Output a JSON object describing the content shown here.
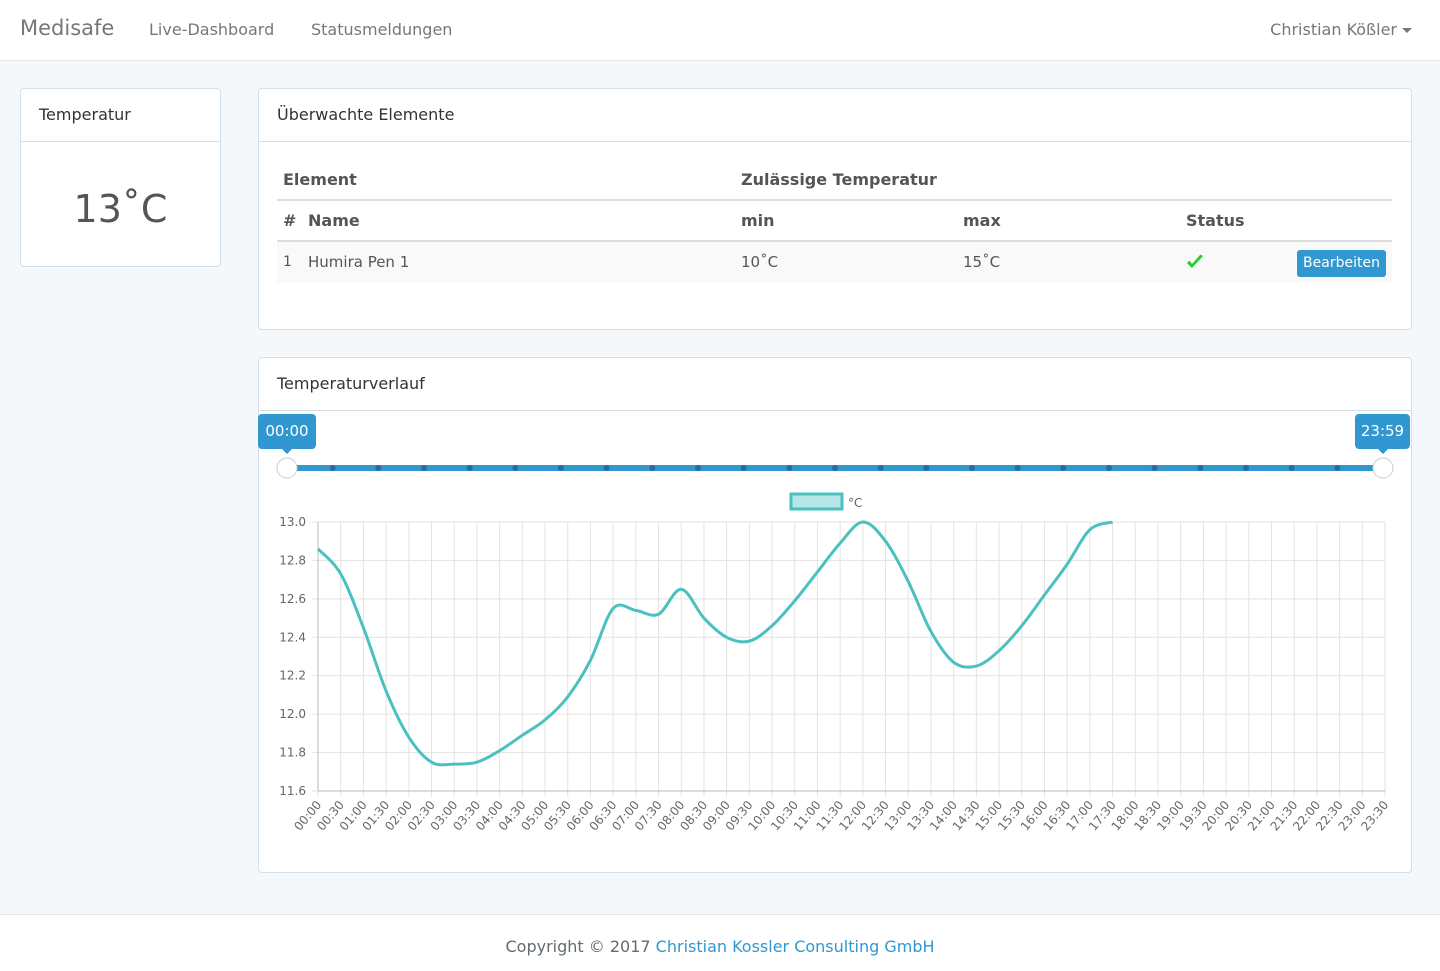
{
  "navbar": {
    "brand": "Medisafe",
    "links": [
      "Live-Dashboard",
      "Statusmeldungen"
    ],
    "user": "Christian Kößler"
  },
  "temperature_panel": {
    "title": "Temperatur",
    "value": "13˚C"
  },
  "elements_panel": {
    "title": "Überwachte Elemente",
    "table": {
      "group_headers": [
        "Element",
        "Zulässige Temperatur"
      ],
      "headers": [
        "#",
        "Name",
        "min",
        "max",
        "Status"
      ],
      "rows": [
        [
          "1",
          "Humira Pen 1",
          "10˚C",
          "15˚C"
        ]
      ],
      "button": "Bearbeiten"
    }
  },
  "history_panel": {
    "title": "Temperaturverlauf",
    "range_start": "00:00",
    "range_end": "23:59"
  },
  "chart_data": {
    "type": "line",
    "categories": [
      "00:00",
      "00:30",
      "01:00",
      "01:30",
      "02:00",
      "02:30",
      "03:00",
      "03:30",
      "04:00",
      "04:30",
      "05:00",
      "05:30",
      "06:00",
      "06:30",
      "07:00",
      "07:30",
      "08:00",
      "08:30",
      "09:00",
      "09:30",
      "10:00",
      "10:30",
      "11:00",
      "11:30",
      "12:00",
      "12:30",
      "13:00",
      "13:30",
      "14:00",
      "14:30",
      "15:00",
      "15:30",
      "16:00",
      "16:30",
      "17:00",
      "17:30",
      "18:00",
      "18:30",
      "19:00",
      "19:30",
      "20:00",
      "20:30",
      "21:00",
      "21:30",
      "22:00",
      "22:30",
      "23:00",
      "23:30"
    ],
    "series": [
      {
        "name": "°C",
        "color": "#4bc0c0",
        "values": [
          12.86,
          12.73,
          12.45,
          12.12,
          11.88,
          11.75,
          11.74,
          11.75,
          11.81,
          11.89,
          11.97,
          12.09,
          12.28,
          12.55,
          12.54,
          12.52,
          12.65,
          12.5,
          12.4,
          12.38,
          12.46,
          12.59,
          12.74,
          12.89,
          13.0,
          12.9,
          12.69,
          12.43,
          12.27,
          12.25,
          12.33,
          12.46,
          12.62,
          12.78,
          12.96,
          13.0,
          null,
          null,
          null,
          null,
          null,
          null,
          null,
          null,
          null,
          null,
          null,
          null
        ]
      }
    ],
    "ylim": [
      11.6,
      13.0
    ],
    "yticks": [
      11.6,
      11.8,
      {
        "value": 12,
        "label": "12.0"
      },
      12.2,
      12.4,
      12.6,
      12.8,
      {
        "value": 13,
        "label": "13.0"
      }
    ],
    "grid": true,
    "legend": "top"
  },
  "footer": {
    "text": "Copyright © 2017",
    "link": "Christian Kossler Consulting GmbH"
  }
}
